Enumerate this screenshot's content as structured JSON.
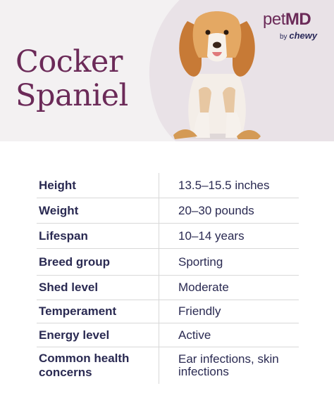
{
  "title": {
    "line1": "Cocker",
    "line2": "Spaniel"
  },
  "logo": {
    "main_pet": "pet",
    "main_md": "MD",
    "sub_by": "by",
    "sub_brand": "chewy"
  },
  "colors": {
    "accent": "#6b2a58",
    "text": "#2a2a52",
    "hero_bg": "#f3f1f2",
    "hero_shape": "#e9e2e7"
  },
  "facts": [
    {
      "label": "Height",
      "value": "13.5–15.5 inches"
    },
    {
      "label": "Weight",
      "value": "20–30 pounds"
    },
    {
      "label": "Lifespan",
      "value": "10–14 years"
    },
    {
      "label": "Breed group",
      "value": "Sporting"
    },
    {
      "label": "Shed level",
      "value": "Moderate"
    },
    {
      "label": "Temperament",
      "value": "Friendly"
    },
    {
      "label": "Energy level",
      "value": "Active"
    },
    {
      "label": "Common health concerns",
      "value": "Ear infections, skin infections"
    }
  ]
}
